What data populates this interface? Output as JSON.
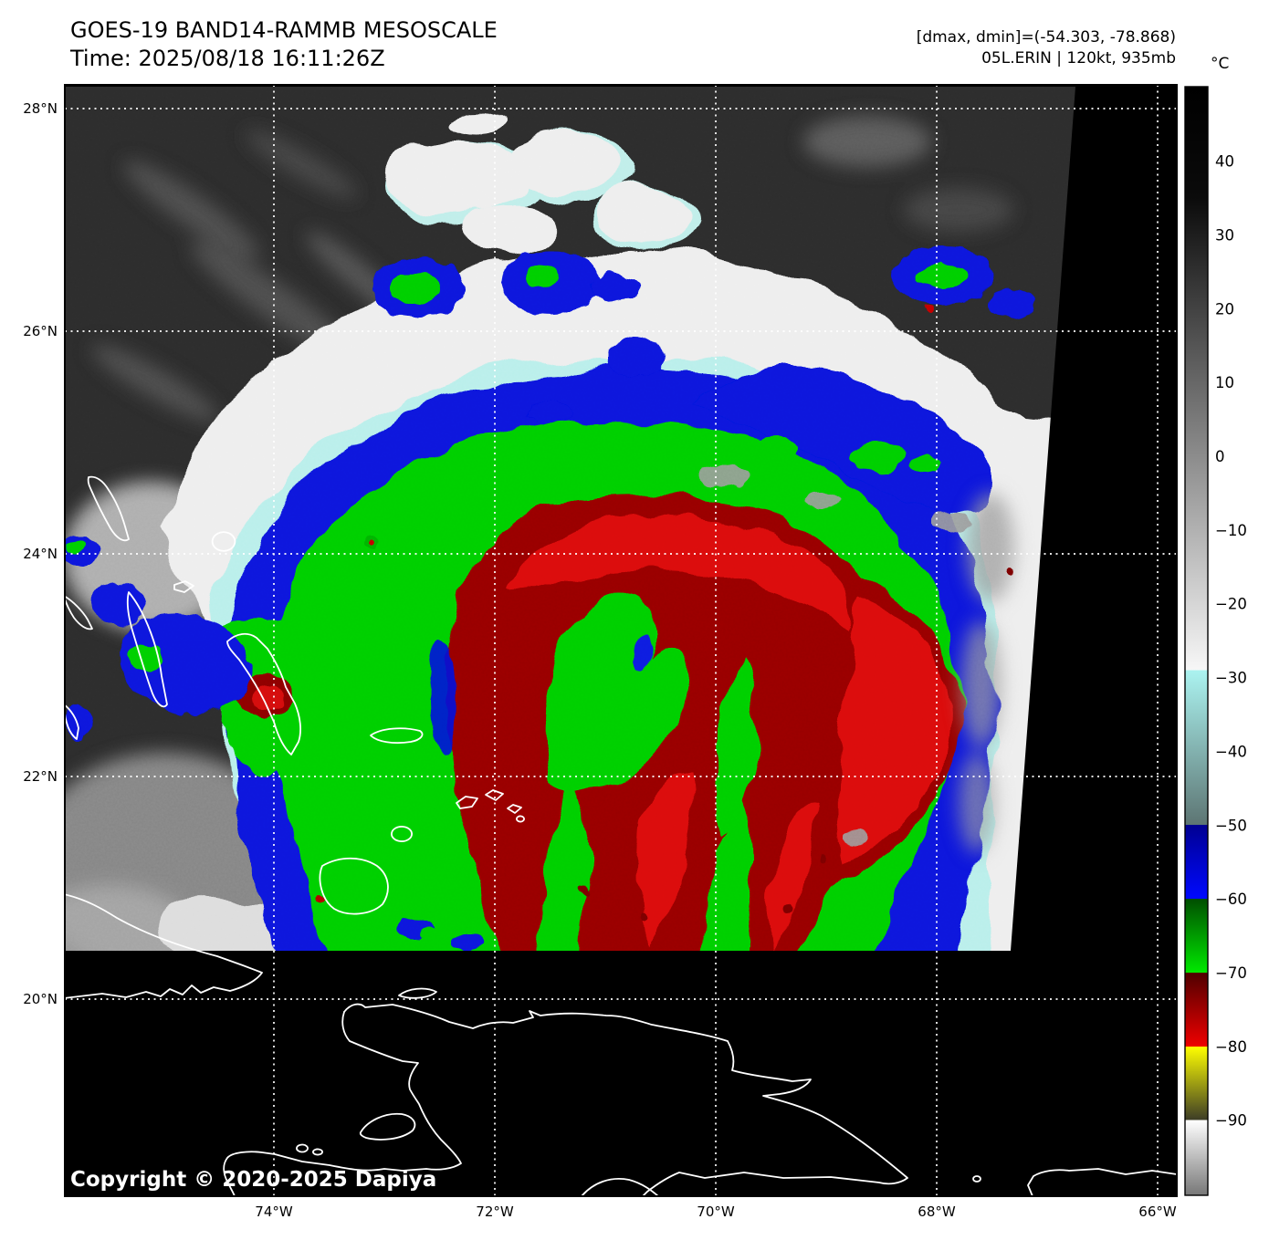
{
  "header": {
    "title": "GOES-19 BAND14-RAMMB MESOSCALE",
    "time": "Time: 2025/08/18 16:11:26Z",
    "dmax_dmin": "[dmax, dmin]=(-54.303, -78.868)",
    "storm": "05L.ERIN | 120kt, 935mb"
  },
  "map": {
    "copyright": "Copyright © 2020-2025 Dapiya"
  },
  "axes": {
    "lat_ticks": [
      {
        "label": "28°N",
        "value": 28
      },
      {
        "label": "26°N",
        "value": 26
      },
      {
        "label": "24°N",
        "value": 24
      },
      {
        "label": "22°N",
        "value": 22
      },
      {
        "label": "20°N",
        "value": 20
      }
    ],
    "lon_ticks": [
      {
        "label": "74°W",
        "value": -74
      },
      {
        "label": "72°W",
        "value": -72
      },
      {
        "label": "70°W",
        "value": -70
      },
      {
        "label": "68°W",
        "value": -68
      },
      {
        "label": "66°W",
        "value": -66
      }
    ]
  },
  "colorbar": {
    "unit": "°C",
    "ticks": [
      {
        "label": "40",
        "value": 40
      },
      {
        "label": "30",
        "value": 30
      },
      {
        "label": "20",
        "value": 20
      },
      {
        "label": "10",
        "value": 10
      },
      {
        "label": "0",
        "value": 0
      },
      {
        "label": "−10",
        "value": -10
      },
      {
        "label": "−20",
        "value": -20
      },
      {
        "label": "−30",
        "value": -30
      },
      {
        "label": "−40",
        "value": -40
      },
      {
        "label": "−50",
        "value": -50
      },
      {
        "label": "−60",
        "value": -60
      },
      {
        "label": "−70",
        "value": -70
      },
      {
        "label": "−80",
        "value": -80
      },
      {
        "label": "−90",
        "value": -90
      }
    ],
    "segments": [
      {
        "t_start": 50.2,
        "t_end": 35,
        "c_start": "#000000",
        "c_end": "#0b0b0b"
      },
      {
        "t_start": 35,
        "t_end": -29,
        "c_start": "#0b0b0b",
        "c_end": "#f7f7f7"
      },
      {
        "t_start": -29,
        "t_end": -50,
        "c_start": "#abf3f0",
        "c_end": "#5d7573"
      },
      {
        "t_start": -50,
        "t_end": -60,
        "c_start": "#000092",
        "c_end": "#0009ff"
      },
      {
        "t_start": -60,
        "t_end": -70,
        "c_start": "#004e00",
        "c_end": "#00e900"
      },
      {
        "t_start": -70,
        "t_end": -80,
        "c_start": "#4f0000",
        "c_end": "#ef0000"
      },
      {
        "t_start": -80,
        "t_end": -90,
        "c_start": "#ffff00",
        "c_end": "#3c3c26"
      },
      {
        "t_start": -90,
        "t_end": -100.3,
        "c_start": "#ffffff",
        "c_end": "#777777"
      }
    ]
  },
  "palette_notes": {
    "cold_cloud_red": "#970101",
    "bright_red": "#df0e0e",
    "deep_convection_green": "#00cf00",
    "cold_blue": "#0713dc",
    "cirrus_cyan": "#b9efeb",
    "warm_cloud_white": "#eeeeee",
    "no_data_black": "#000000"
  }
}
